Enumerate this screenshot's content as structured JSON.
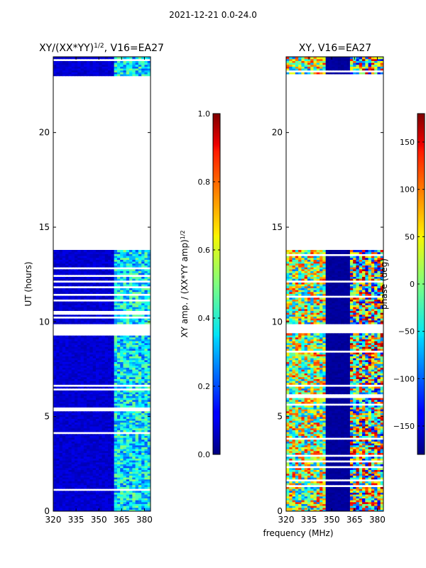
{
  "figure": {
    "suptitle": "2021-12-21 0.0-24.0",
    "xlabel": "frequency (MHz)"
  },
  "chart_data": [
    {
      "type": "heatmap",
      "title": "XY/(XX*YY)",
      "title_sup": "1/2",
      "title_suffix": ", V16=EA27",
      "xlabel": "",
      "ylabel": "UT (hours)",
      "xlim": [
        320,
        384
      ],
      "ylim": [
        0,
        24
      ],
      "xticks": [
        320,
        335,
        350,
        365,
        380
      ],
      "yticks": [
        0,
        5,
        10,
        15,
        20
      ],
      "colorbar": {
        "label": "XY amp. / (XX*YY amp)",
        "label_sup": "1/2",
        "range": [
          0.0,
          1.0
        ],
        "ticks": [
          "0.0",
          "0.2",
          "0.4",
          "0.6",
          "0.8",
          "1.0"
        ],
        "colormap": "jet"
      },
      "data_time_ranges_hours": [
        [
          0.0,
          9.4
        ],
        [
          9.9,
          13.8
        ],
        [
          23.0,
          24.0
        ]
      ],
      "value_description": "low amplitude (~0.05) for 320-360 MHz; elevated amplitude (~0.3-0.6) for 360-380 MHz",
      "typical_values": {
        "band_320_360": 0.05,
        "band_360_380": 0.4
      }
    },
    {
      "type": "heatmap",
      "title": "XY, V16=EA27",
      "xlabel": "",
      "ylabel": "",
      "xlim": [
        320,
        384
      ],
      "ylim": [
        0,
        24
      ],
      "xticks": [
        320,
        335,
        350,
        365,
        380
      ],
      "yticks": [
        0,
        5,
        10,
        15,
        20
      ],
      "colorbar": {
        "label": "phase (deg)",
        "range": [
          -180,
          180
        ],
        "ticks": [
          "−150",
          "−100",
          "−50",
          "0",
          "50",
          "100",
          "150"
        ],
        "colormap": "jet"
      },
      "data_time_ranges_hours": [
        [
          0.0,
          9.4
        ],
        [
          9.9,
          13.8
        ],
        [
          23.0,
          24.0
        ]
      ],
      "value_description": "phase mostly near -180 deg; 320-345 MHz shows structured phase from -90 to +180 deg; 360-380 MHz mixed phases",
      "typical_values": {
        "band_320_345": 40,
        "band_345_360": -175,
        "band_360_380": 20
      }
    }
  ],
  "colors": {
    "axis": "#000000",
    "background": "#ffffff",
    "gap_lines": "#ffffff"
  }
}
